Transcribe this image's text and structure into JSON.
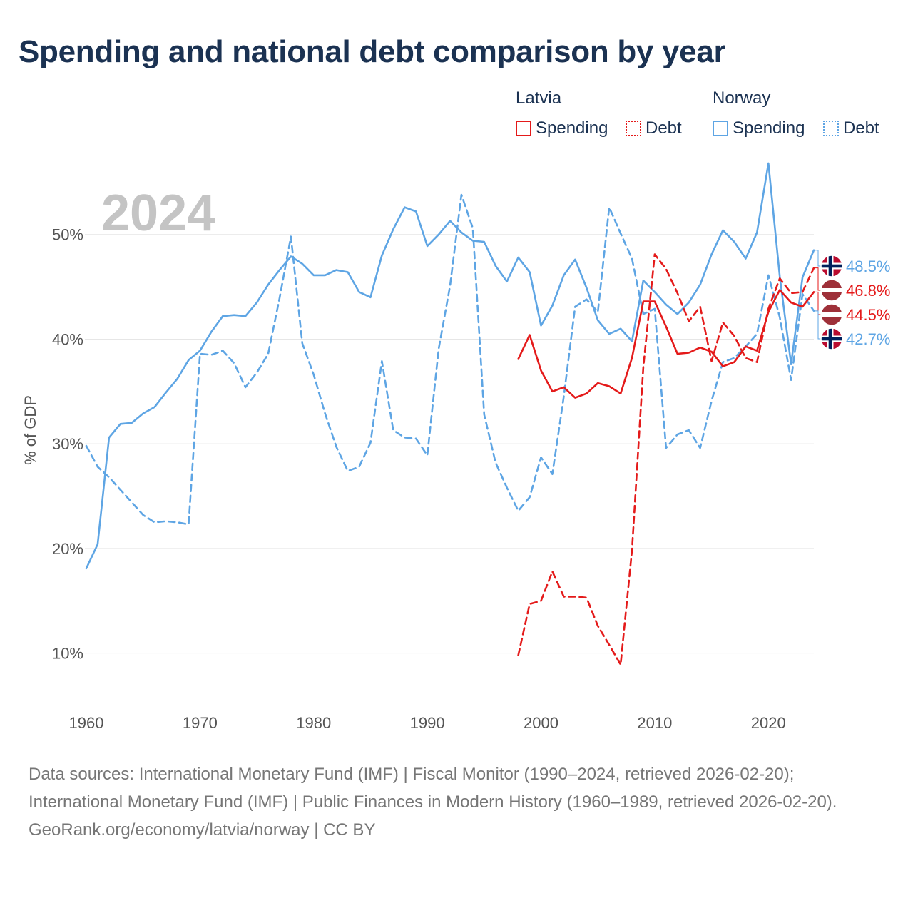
{
  "page": {
    "title": "Spending and national debt comparison by year",
    "highlight_year": "2024"
  },
  "legend": {
    "groups": [
      {
        "name": "Latvia",
        "color": "#e41a1a",
        "items": [
          {
            "label": "Spending",
            "style": "solid"
          },
          {
            "label": "Debt",
            "style": "dotted"
          }
        ]
      },
      {
        "name": "Norway",
        "color": "#5ea5e4",
        "items": [
          {
            "label": "Spending",
            "style": "solid"
          },
          {
            "label": "Debt",
            "style": "dotted"
          }
        ]
      }
    ]
  },
  "footer": {
    "sources": "Data sources: International Monetary Fund (IMF) | Fiscal Monitor (1990–2024, retrieved 2026-02-20); International Monetary Fund (IMF) | Public Finances in Modern History (1960–1989, retrieved 2026-02-20).",
    "credit": "GeoRank.org/economy/latvia/norway | CC BY"
  },
  "chart_data": {
    "type": "line",
    "title": "Spending and national debt comparison by year",
    "ylabel": "% of GDP",
    "xlabel": "",
    "xlim": [
      1960,
      2024
    ],
    "ylim": [
      5,
      57
    ],
    "x_ticks": [
      1960,
      1970,
      1980,
      1990,
      2000,
      2010,
      2020
    ],
    "y_ticks": [
      10,
      20,
      30,
      40,
      50
    ],
    "y_tick_labels": [
      "10%",
      "20%",
      "30%",
      "40%",
      "50%"
    ],
    "grid": true,
    "series": [
      {
        "name": "Norway Spending",
        "country": "Norway",
        "metric": "Spending",
        "color": "#5ea5e4",
        "dash": "solid",
        "start_year": 1960,
        "end_label": "48.5%",
        "flag": "norway",
        "values": [
          18.1,
          20.4,
          30.6,
          31.9,
          32,
          32.9,
          33.5,
          34.9,
          36.2,
          38,
          38.9,
          40.7,
          42.2,
          42.3,
          42.2,
          43.5,
          45.2,
          46.6,
          47.9,
          47.2,
          46.1,
          46.1,
          46.6,
          46.4,
          44.5,
          44,
          48,
          50.5,
          52.6,
          52.2,
          48.9,
          50,
          51.3,
          50.2,
          49.4,
          49.3,
          47,
          45.5,
          47.8,
          46.4,
          41.3,
          43.2,
          46.1,
          47.6,
          44.9,
          41.8,
          40.5,
          41,
          39.8,
          45.6,
          44.5,
          43.3,
          42.4,
          43.5,
          45.2,
          48.1,
          50.4,
          49.3,
          47.7,
          50.2,
          56.8,
          46,
          37.6,
          45.9,
          48.5
        ]
      },
      {
        "name": "Norway Debt",
        "country": "Norway",
        "metric": "Debt",
        "color": "#5ea5e4",
        "dash": "dashed",
        "start_year": 1960,
        "end_label": "42.7%",
        "flag": "norway",
        "values": [
          29.8,
          27.8,
          26.8,
          25.6,
          24.4,
          23.2,
          22.5,
          22.6,
          22.5,
          22.3,
          38.6,
          38.5,
          38.9,
          37.7,
          35.4,
          36.8,
          38.6,
          43.9,
          49.8,
          39.6,
          36.6,
          32.9,
          29.7,
          27.4,
          27.8,
          30.1,
          37.9,
          31.3,
          30.6,
          30.5,
          28.9,
          39.1,
          45.1,
          53.8,
          50.6,
          32.8,
          28.2,
          25.8,
          23.6,
          24.9,
          28.7,
          27.1,
          34.5,
          43.1,
          43.8,
          42.6,
          52.6,
          50.1,
          47.7,
          42.4,
          42.9,
          29.6,
          30.9,
          31.3,
          29.6,
          34.1,
          37.8,
          38.2,
          39.3,
          40.5,
          46.1,
          42.1,
          36.1,
          44.3,
          42.7
        ]
      },
      {
        "name": "Latvia Spending",
        "country": "Latvia",
        "metric": "Spending",
        "color": "#e41a1a",
        "dash": "solid",
        "start_year": 1998,
        "end_label": "44.5%",
        "flag": "latvia",
        "values": [
          38.1,
          40.4,
          37,
          35,
          35.4,
          34.4,
          34.8,
          35.8,
          35.5,
          34.8,
          38.2,
          43.6,
          43.6,
          41.2,
          38.6,
          38.7,
          39.2,
          38.8,
          37.4,
          37.8,
          39.3,
          38.9,
          42.6,
          44.7,
          43.5,
          43.1,
          44.5
        ]
      },
      {
        "name": "Latvia Debt",
        "country": "Latvia",
        "metric": "Debt",
        "color": "#e41a1a",
        "dash": "dashed",
        "start_year": 1998,
        "end_label": "46.8%",
        "flag": "latvia",
        "values": [
          9.8,
          14.7,
          15,
          17.8,
          15.4,
          15.4,
          15.3,
          12.6,
          10.8,
          8.9,
          19.8,
          37.3,
          48.1,
          46.7,
          44.4,
          41.7,
          43.1,
          37.9,
          41.6,
          40.3,
          38.2,
          37.8,
          42.9,
          45.8,
          44.4,
          44.5,
          46.8
        ]
      }
    ]
  }
}
